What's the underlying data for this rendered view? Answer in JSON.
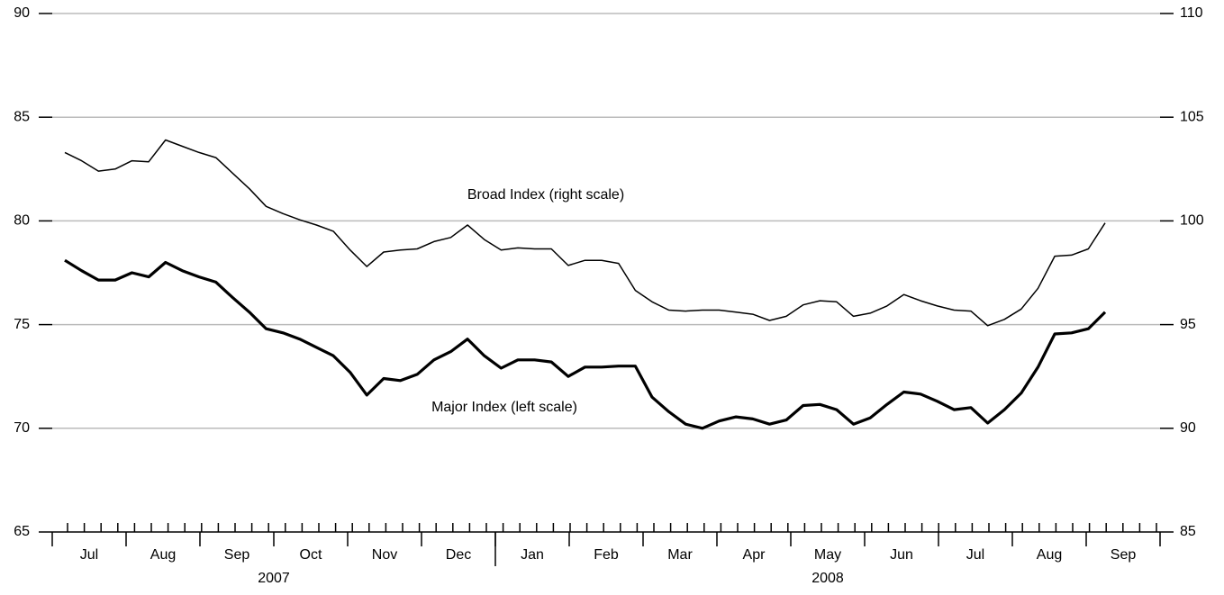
{
  "chart_data": {
    "type": "line",
    "months": [
      "Jul",
      "Aug",
      "Sep",
      "Oct",
      "Nov",
      "Dec",
      "Jan",
      "Feb",
      "Mar",
      "Apr",
      "May",
      "Jun",
      "Jul",
      "Aug",
      "Sep"
    ],
    "years": [
      {
        "label": "2007",
        "months": 6
      },
      {
        "label": "2008",
        "months": 9
      }
    ],
    "ylim": [
      65,
      90
    ],
    "yticks": [
      65,
      70,
      75,
      80,
      85,
      90
    ],
    "y2lim": [
      85,
      110
    ],
    "y2ticks": [
      85,
      90,
      95,
      100,
      105,
      110
    ],
    "grid": true,
    "series": [
      {
        "name": "Major Index (left scale)",
        "color": "#000000",
        "axis": "y",
        "values": [
          78.1,
          77.6,
          77.15,
          77.15,
          77.5,
          77.3,
          78.0,
          77.6,
          77.3,
          77.05,
          76.3,
          75.6,
          74.8,
          74.6,
          74.3,
          73.9,
          73.5,
          72.7,
          71.6,
          72.4,
          72.3,
          72.6,
          73.3,
          73.7,
          74.3,
          73.5,
          72.9,
          73.3,
          73.3,
          73.2,
          72.5,
          72.95,
          72.95,
          73.0,
          73.0,
          71.5,
          70.8,
          70.2,
          70.0,
          70.35,
          70.55,
          70.45,
          70.2,
          70.4,
          71.1,
          71.15,
          70.9,
          70.2,
          70.5,
          71.15,
          71.75,
          71.65,
          71.3,
          70.9,
          71.0,
          70.25,
          70.9,
          71.7,
          72.95,
          74.55,
          74.6,
          74.8,
          75.6
        ]
      },
      {
        "name": "Broad Index (right scale)",
        "color": "#000000",
        "axis": "y2",
        "values": [
          103.3,
          102.9,
          102.4,
          102.5,
          102.9,
          102.85,
          103.9,
          103.6,
          103.3,
          103.05,
          102.3,
          101.55,
          100.7,
          100.35,
          100.05,
          99.8,
          99.5,
          98.6,
          97.8,
          98.5,
          98.6,
          98.65,
          99.0,
          99.2,
          99.8,
          99.1,
          98.6,
          98.7,
          98.65,
          98.65,
          97.85,
          98.1,
          98.1,
          97.95,
          96.65,
          96.1,
          95.7,
          95.65,
          95.7,
          95.7,
          95.6,
          95.5,
          95.2,
          95.4,
          95.95,
          96.15,
          96.1,
          95.4,
          95.55,
          95.9,
          96.45,
          96.15,
          95.9,
          95.7,
          95.65,
          94.95,
          95.25,
          95.75,
          96.75,
          98.3,
          98.35,
          98.65,
          99.9
        ]
      }
    ]
  }
}
